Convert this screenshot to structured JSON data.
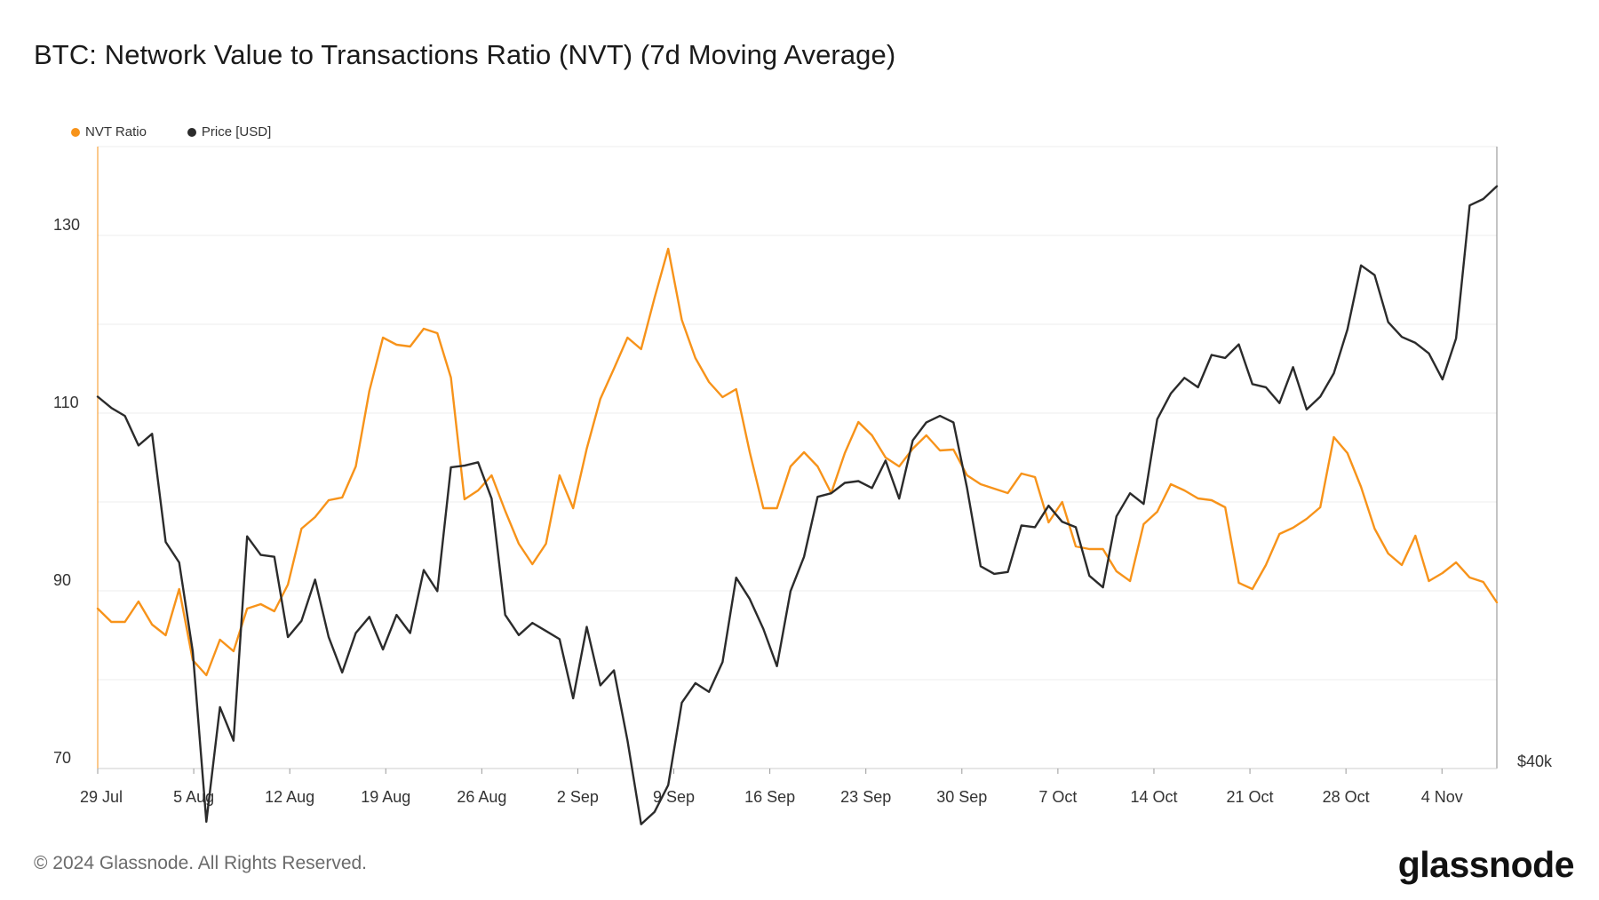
{
  "title": "BTC: Network Value to Transactions Ratio (NVT) (7d Moving Average)",
  "legend": {
    "nvt_label": "NVT Ratio",
    "price_label": "Price [USD]"
  },
  "colors": {
    "nvt": "#f7931a",
    "price": "#2b2b2b",
    "grid": "#ececec"
  },
  "footer": {
    "copyright": "© 2024 Glassnode. All Rights Reserved.",
    "logo": "glassnode"
  },
  "chart_data": {
    "type": "line",
    "title": "BTC: Network Value to Transactions Ratio (NVT) (7d Moving Average)",
    "x_ticks": [
      "29 Jul",
      "5 Aug",
      "12 Aug",
      "19 Aug",
      "26 Aug",
      "2 Sep",
      "9 Sep",
      "16 Sep",
      "23 Sep",
      "30 Sep",
      "7 Oct",
      "14 Oct",
      "21 Oct",
      "28 Oct",
      "4 Nov"
    ],
    "x_range_days": [
      0,
      102
    ],
    "y_left": {
      "ticks": [
        70,
        90,
        110,
        130
      ],
      "range": [
        70,
        140
      ]
    },
    "y_right": {
      "ticks": [
        "$40k"
      ]
    },
    "grid": true,
    "legend_position": "top-left",
    "series": [
      {
        "name": "NVT Ratio",
        "axis": "left",
        "values": [
          88,
          86.5,
          86.5,
          88.8,
          86.2,
          85,
          90.2,
          82.2,
          80.5,
          84.5,
          83.2,
          88,
          88.5,
          87.7,
          90.7,
          97,
          98.3,
          100.2,
          100.5,
          104,
          112.5,
          118.5,
          117.7,
          117.5,
          119.5,
          119,
          114,
          100.3,
          101.3,
          103,
          99,
          95.3,
          93,
          95.3,
          103,
          99.3,
          106,
          111.6,
          115,
          118.5,
          117.2,
          123,
          128.5,
          120.5,
          116.2,
          113.5,
          111.8,
          112.7,
          105.6,
          99.3,
          99.3,
          104,
          105.6,
          104,
          101,
          105.5,
          109,
          107.5,
          105,
          104,
          106,
          107.5,
          105.8,
          105.9,
          103,
          102,
          101.5,
          101,
          103.2,
          102.8,
          97.7,
          100,
          95,
          94.7,
          94.7,
          92.2,
          91.1,
          97.5,
          98.9,
          102,
          101.3,
          100.4,
          100.2,
          99.4,
          90.9,
          90.2,
          92.9,
          96.4,
          97.1,
          98.1,
          99.4,
          107.3,
          105.5,
          101.7,
          97,
          94.2,
          92.9,
          96.2,
          91.1,
          92,
          93.2,
          91.5,
          91,
          88.7
        ],
        "color": "#f7931a"
      },
      {
        "name": "Price [USD]",
        "axis": "right",
        "values": [
          59400,
          58700,
          58200,
          56400,
          57100,
          50900,
          49800,
          45300,
          37800,
          42700,
          41200,
          51200,
          50200,
          50100,
          46000,
          46800,
          48900,
          46000,
          44300,
          46200,
          47000,
          45400,
          47100,
          46200,
          49400,
          48300,
          55100,
          55200,
          55400,
          53300,
          47100,
          46100,
          46700,
          46300,
          45900,
          43100,
          46500,
          43700,
          44400,
          41200,
          37700,
          38200,
          39300,
          42900,
          43800,
          43400,
          44800,
          49000,
          47900,
          46400,
          44600,
          48300,
          50100,
          53400,
          53600,
          54200,
          54300,
          53900,
          55500,
          53300,
          56700,
          57800,
          58200,
          57800,
          53900,
          49600,
          49200,
          49300,
          51800,
          51700,
          52900,
          52000,
          51700,
          49100,
          48500,
          52300,
          53600,
          53000,
          58000,
          59600,
          60600,
          60000,
          62100,
          61900,
          62800,
          60200,
          60000,
          59000,
          61300,
          58600,
          59400,
          60900,
          63800,
          68300,
          67600,
          64300,
          63300,
          62900,
          62200,
          60500,
          63200,
          72800,
          73300,
          74300
        ],
        "color": "#2b2b2b"
      }
    ]
  }
}
